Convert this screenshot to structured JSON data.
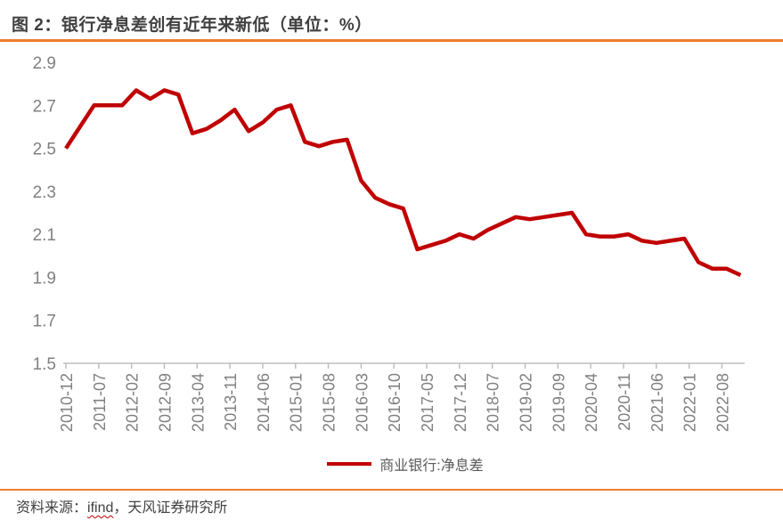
{
  "header": {
    "title": "图 2：银行净息差创有近年来新低（单位：%）"
  },
  "legend": {
    "label": "商业银行:净息差"
  },
  "source": {
    "prefix": "资料来源：",
    "provider": "ifind",
    "suffix": "，天风证券研究所"
  },
  "colors": {
    "series_red": "#C00000",
    "accent_orange": "#ED7D31",
    "axis_gray": "#BFBFBF",
    "label_gray": "#808080"
  },
  "chart_data": {
    "type": "line",
    "title": "银行净息差创有近年来新低",
    "unit": "%",
    "ylim": [
      1.5,
      2.9
    ],
    "y_ticks": [
      2.9,
      2.7,
      2.5,
      2.3,
      2.1,
      1.9,
      1.7,
      1.5
    ],
    "x_tick_labels": [
      "2010-12",
      "2011-07",
      "2012-02",
      "2012-09",
      "2013-04",
      "2013-11",
      "2014-06",
      "2015-01",
      "2015-08",
      "2016-03",
      "2016-10",
      "2017-05",
      "2017-12",
      "2018-07",
      "2019-02",
      "2019-09",
      "2020-04",
      "2020-11",
      "2021-06",
      "2022-01",
      "2022-08"
    ],
    "grid": false,
    "legend_position": "bottom",
    "series": [
      {
        "name": "商业银行:净息差",
        "x": [
          "2010-12",
          "2011-03",
          "2011-06",
          "2011-09",
          "2011-12",
          "2012-03",
          "2012-06",
          "2012-09",
          "2012-12",
          "2013-03",
          "2013-06",
          "2013-09",
          "2013-12",
          "2014-03",
          "2014-06",
          "2014-09",
          "2014-12",
          "2015-03",
          "2015-06",
          "2015-09",
          "2015-12",
          "2016-03",
          "2016-06",
          "2016-09",
          "2016-12",
          "2017-03",
          "2017-06",
          "2017-09",
          "2017-12",
          "2018-03",
          "2018-06",
          "2018-09",
          "2018-12",
          "2019-03",
          "2019-06",
          "2019-09",
          "2019-12",
          "2020-03",
          "2020-06",
          "2020-09",
          "2020-12",
          "2021-03",
          "2021-06",
          "2021-09",
          "2021-12",
          "2022-03",
          "2022-06",
          "2022-09",
          "2022-12"
        ],
        "values": [
          2.5,
          2.6,
          2.7,
          2.7,
          2.7,
          2.77,
          2.73,
          2.77,
          2.75,
          2.57,
          2.59,
          2.63,
          2.68,
          2.58,
          2.62,
          2.68,
          2.7,
          2.53,
          2.51,
          2.53,
          2.54,
          2.35,
          2.27,
          2.24,
          2.22,
          2.03,
          2.05,
          2.07,
          2.1,
          2.08,
          2.12,
          2.15,
          2.18,
          2.17,
          2.18,
          2.19,
          2.2,
          2.1,
          2.09,
          2.09,
          2.1,
          2.07,
          2.06,
          2.07,
          2.08,
          1.97,
          1.94,
          1.94,
          1.91
        ]
      }
    ]
  }
}
